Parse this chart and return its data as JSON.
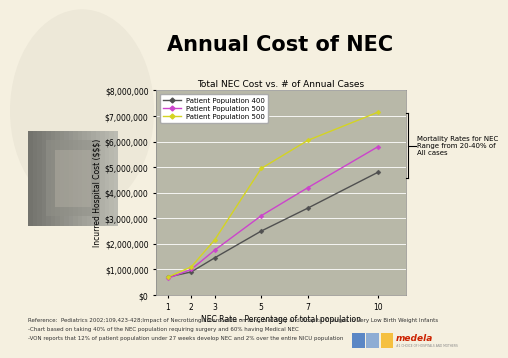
{
  "title": "Annual Cost of NEC",
  "subtitle": "Total NEC Cost vs. # of Annual Cases",
  "xlabel": "NEC Rate - Percentage of total population",
  "ylabel": "Incurred Hospital Cost ($$$)",
  "chart_bg": "#b8b8a8",
  "outer_bg": "#f5f0e0",
  "x_ticks": [
    1,
    2,
    3,
    5,
    7,
    10
  ],
  "xlim": [
    0.5,
    11.2
  ],
  "ylim": [
    0,
    8000000
  ],
  "yticks": [
    0,
    1000000,
    2000000,
    3000000,
    4000000,
    5000000,
    6000000,
    7000000,
    8000000
  ],
  "ytick_labels": [
    "$0",
    "$1,000,000",
    "$2,000,000",
    "$3,000,000",
    "$4,000,000",
    "$5,000,000",
    "$6,000,000",
    "$7,000,000",
    "$8,000,000"
  ],
  "series": [
    {
      "label": "Patient Population 400",
      "color": "#505050",
      "x": [
        1,
        2,
        3,
        5,
        7,
        10
      ],
      "y": [
        700000,
        900000,
        1450000,
        2500000,
        3400000,
        4800000
      ]
    },
    {
      "label": "Patient Population 500",
      "color": "#cc44cc",
      "x": [
        1,
        2,
        3,
        5,
        7,
        10
      ],
      "y": [
        650000,
        1000000,
        1750000,
        3100000,
        4200000,
        5800000
      ]
    },
    {
      "label": "Patient Population 500",
      "color": "#d4d422",
      "x": [
        1,
        2,
        3,
        5,
        7,
        10
      ],
      "y": [
        700000,
        1100000,
        2150000,
        4950000,
        6050000,
        7150000
      ]
    }
  ],
  "annotation_text": "Mortality Rates for NEC\nRange from 20-40% of\nAll cases",
  "footnote1": "Reference:  Pediatrics 2002;109,423-428;Impact of Necrotizing Enterocolitis on Length of Stay and Hospital Charges in Very Low Birth Weight Infants",
  "footnote2": "-Chart based on taking 40% of the NEC population requiring surgery and 60% having Medical NEC",
  "footnote3": "-VON reports that 12% of patient population under 27 weeks develop NEC and 2% over the entire NICU population",
  "logo_colors": [
    "#5b87c5",
    "#8eadd4",
    "#f5c040"
  ],
  "medela_color": "#cc2200",
  "medela_sub": "#1 CHOICE OF HOSPITALS AND MOTHERS",
  "title_fontsize": 15,
  "subtitle_fontsize": 6.5,
  "axis_label_fontsize": 5.5,
  "tick_fontsize": 5.5,
  "legend_fontsize": 5.0,
  "ann_fontsize": 5.0,
  "footnote_fontsize": 4.0
}
